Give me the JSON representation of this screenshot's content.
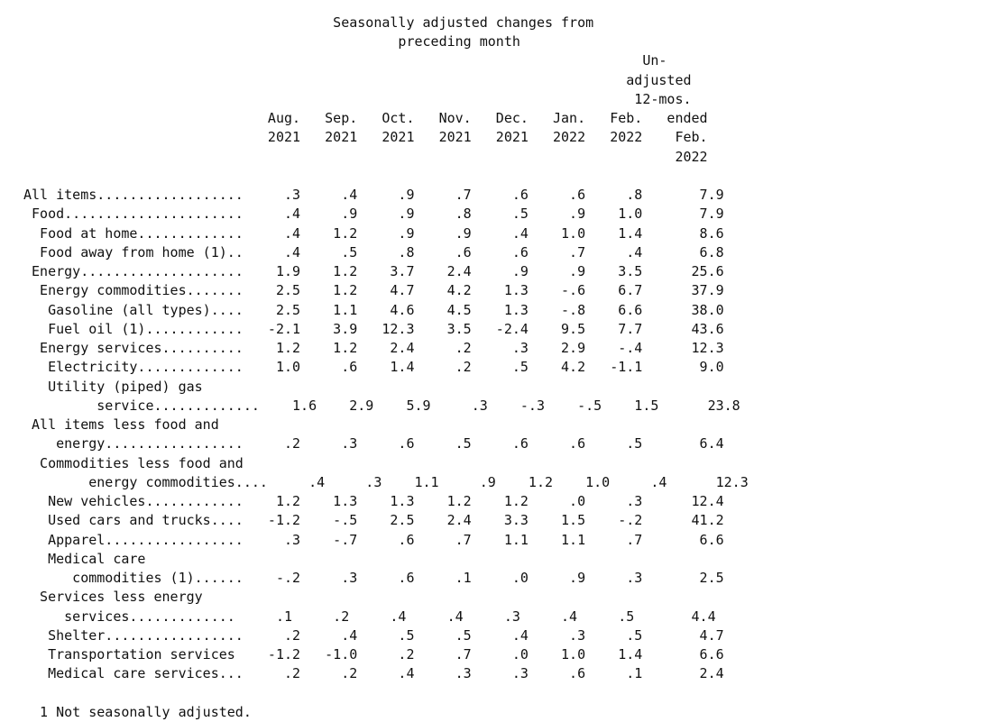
{
  "header_lines": [
    "                                      Seasonally adjusted changes from",
    "                                              preceding month",
    "                                                                            Un-",
    "                                                                          adjusted",
    "                                                                           12-mos.",
    "                              Aug.   Sep.   Oct.   Nov.   Dec.   Jan.   Feb.   ended",
    "                              2021   2021   2021   2021   2021   2022   2022    Feb.",
    "                                                                                2022"
  ],
  "table": {
    "columns": [
      "Aug. 2021",
      "Sep. 2021",
      "Oct. 2021",
      "Nov. 2021",
      "Dec. 2021",
      "Jan. 2022",
      "Feb. 2022",
      "Unadjusted 12-mos. ended Feb. 2022"
    ],
    "rows": [
      {
        "text": "All items..................     .3     .4     .9     .7     .6     .6     .8       7.9"
      },
      {
        "text": " Food......................     .4     .9     .9     .8     .5     .9    1.0       7.9"
      },
      {
        "text": "  Food at home.............     .4    1.2     .9     .9     .4    1.0    1.4       8.6"
      },
      {
        "text": "  Food away from home (1)..     .4     .5     .8     .6     .6     .7     .4       6.8"
      },
      {
        "text": " Energy....................    1.9    1.2    3.7    2.4     .9     .9    3.5      25.6"
      },
      {
        "text": "  Energy commodities.......    2.5    1.2    4.7    4.2    1.3    -.6    6.7      37.9"
      },
      {
        "text": "   Gasoline (all types)....    2.5    1.1    4.6    4.5    1.3    -.8    6.6      38.0"
      },
      {
        "text": "   Fuel oil (1)............   -2.1    3.9   12.3    3.5   -2.4    9.5    7.7      43.6"
      },
      {
        "text": "  Energy services..........    1.2    1.2    2.4     .2     .3    2.9    -.4      12.3"
      },
      {
        "text": "   Electricity.............    1.0     .6    1.4     .2     .5    4.2   -1.1       9.0"
      },
      {
        "text": "   Utility (piped) gas"
      },
      {
        "text": "         service.............    1.6    2.9    5.9     .3    -.3    -.5    1.5      23.8"
      },
      {
        "text": " All items less food and"
      },
      {
        "text": "    energy.................     .2     .3     .6     .5     .6     .6     .5       6.4"
      },
      {
        "text": "  Commodities less food and"
      },
      {
        "text": "        energy commodities....     .4     .3    1.1     .9    1.2    1.0     .4      12.3"
      },
      {
        "text": "   New vehicles............    1.2    1.3    1.3    1.2    1.2     .0     .3      12.4"
      },
      {
        "text": "   Used cars and trucks....   -1.2    -.5    2.5    2.4    3.3    1.5    -.2      41.2"
      },
      {
        "text": "   Apparel.................     .3    -.7     .6     .7    1.1    1.1     .7       6.6"
      },
      {
        "text": "   Medical care"
      },
      {
        "text": "      commodities (1)......    -.2     .3     .6     .1     .0     .9     .3       2.5"
      },
      {
        "text": "  Services less energy"
      },
      {
        "text": "     services.............     .1     .2     .4     .4     .3     .4     .5       4.4"
      },
      {
        "text": "   Shelter.................     .2     .4     .5     .5     .4     .3     .5       4.7"
      },
      {
        "text": "   Transportation services    -1.2   -1.0     .2     .7     .0    1.0    1.4       6.6"
      },
      {
        "text": "   Medical care services...     .2     .2     .4     .3     .3     .6     .1       2.4"
      }
    ]
  },
  "footnote": "  1 Not seasonally adjusted."
}
